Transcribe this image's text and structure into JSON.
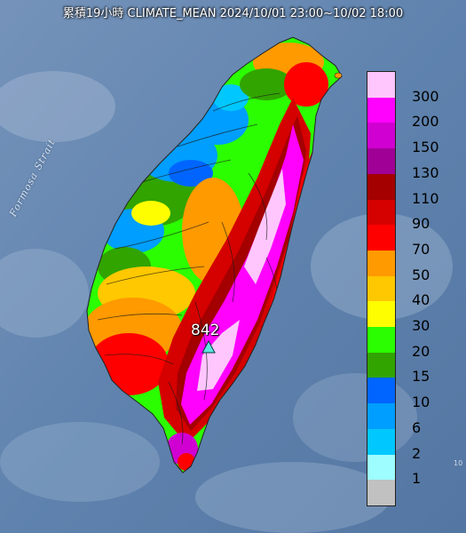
{
  "header": {
    "title": "累積19小時 CLIMATE_MEAN 2024/10/01 23:00~10/02 18:00"
  },
  "map": {
    "sea_label": "Formosa Strait",
    "max_value_label": "842",
    "max_marker_icon": "triangle-marker-icon",
    "corner_text": "10"
  },
  "legend": {
    "unit": "",
    "bins": [
      {
        "label": "300",
        "color": "#ffc6fe"
      },
      {
        "label": "200",
        "color": "#ff02fe"
      },
      {
        "label": "150",
        "color": "#d000d2"
      },
      {
        "label": "130",
        "color": "#a00095"
      },
      {
        "label": "110",
        "color": "#a40000"
      },
      {
        "label": "90",
        "color": "#d50000"
      },
      {
        "label": "70",
        "color": "#ff0000"
      },
      {
        "label": "50",
        "color": "#ff9a00"
      },
      {
        "label": "40",
        "color": "#ffc800"
      },
      {
        "label": "30",
        "color": "#fffe00"
      },
      {
        "label": "20",
        "color": "#2bfe00"
      },
      {
        "label": "15",
        "color": "#31a400"
      },
      {
        "label": "10",
        "color": "#0065fe"
      },
      {
        "label": "6",
        "color": "#009efe"
      },
      {
        "label": "2",
        "color": "#00c8fe"
      },
      {
        "label": "1",
        "color": "#9efeff"
      },
      {
        "label": "",
        "color": "#c1c1c1"
      }
    ]
  }
}
